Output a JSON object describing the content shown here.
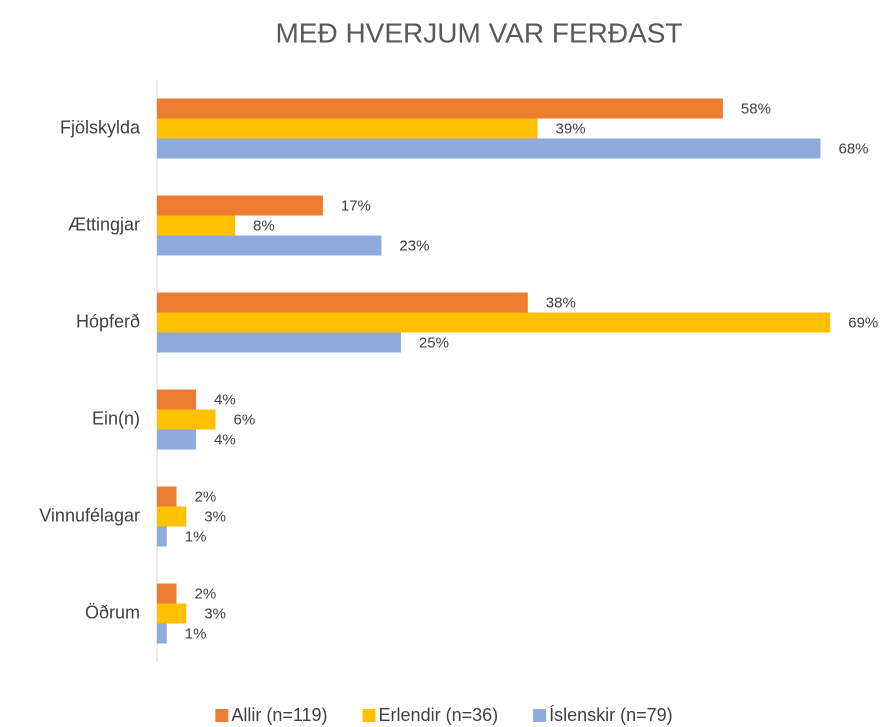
{
  "chart_data": {
    "type": "bar",
    "orientation": "horizontal",
    "title": "MEÐ HVERJUM VAR FERÐAST",
    "categories": [
      "Fjölskylda",
      "Ættingjar",
      "Hópferð",
      "Ein(n)",
      "Vinnufélagar",
      "Öðrum"
    ],
    "series": [
      {
        "name": "Allir (n=119)",
        "color": "#ED7D31",
        "values": [
          58,
          17,
          38,
          4,
          2,
          2
        ],
        "value_labels": [
          "58%",
          "17%",
          "38%",
          "4%",
          "2%",
          "2%"
        ]
      },
      {
        "name": "Erlendir (n=36)",
        "color": "#FFC000",
        "values": [
          39,
          8,
          69,
          6,
          3,
          3
        ],
        "value_labels": [
          "39%",
          "8%",
          "69%",
          "6%",
          "3%",
          "3%"
        ]
      },
      {
        "name": "Íslenskir (n=79)",
        "color": "#8FAADC",
        "values": [
          68,
          23,
          25,
          4,
          1,
          1
        ],
        "value_labels": [
          "68%",
          "23%",
          "25%",
          "4%",
          "1%",
          "1%"
        ]
      }
    ],
    "xlim": [
      0,
      70
    ],
    "legend": "bottom"
  }
}
